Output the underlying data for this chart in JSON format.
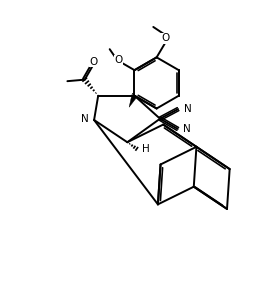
{
  "bg": "#ffffff",
  "lc": "#000000",
  "lw": 1.4,
  "fs": 7.5,
  "fw": 2.57,
  "fh": 2.86,
  "dpi": 100,
  "xlim": [
    0,
    10
  ],
  "ylim": [
    0,
    11
  ]
}
